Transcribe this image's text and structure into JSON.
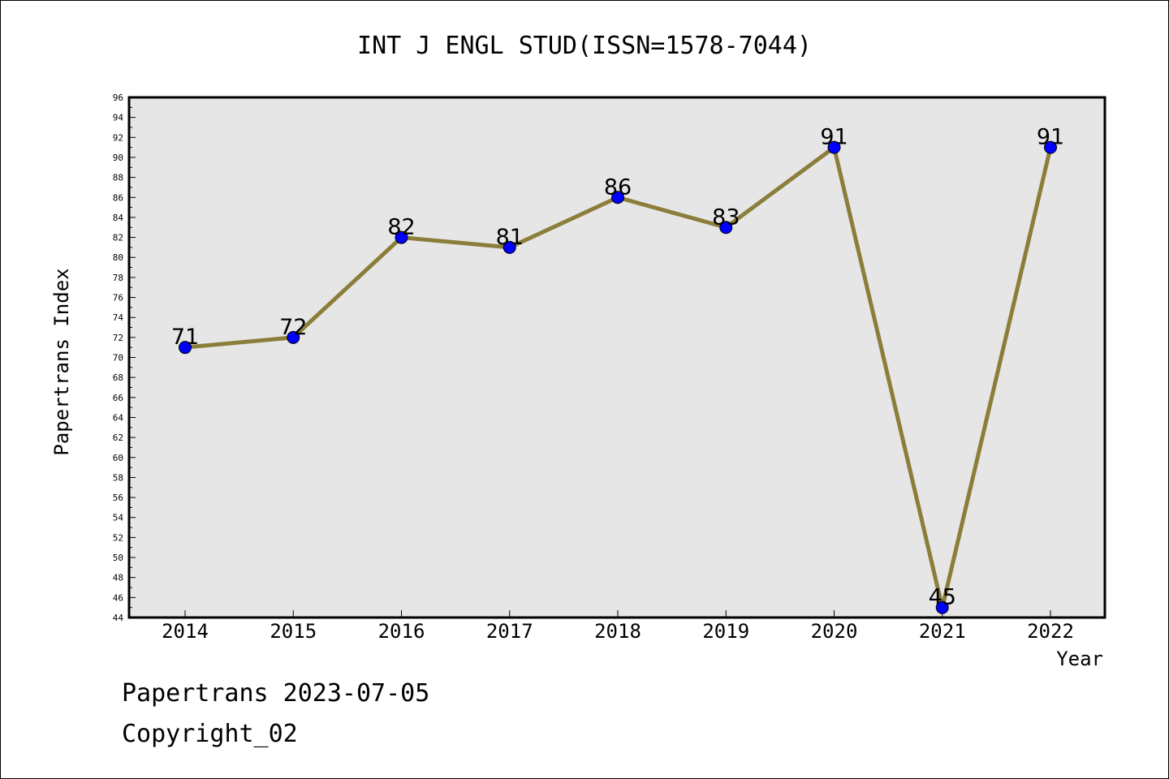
{
  "chart_data": {
    "type": "line",
    "title": "INT J ENGL STUD(ISSN=1578-7044)",
    "xlabel": "Year",
    "ylabel": "Papertrans Index",
    "categories": [
      "2014",
      "2015",
      "2016",
      "2017",
      "2018",
      "2019",
      "2020",
      "2021",
      "2022"
    ],
    "series": [
      {
        "values": [
          71,
          72,
          82,
          81,
          86,
          83,
          91,
          45,
          91
        ]
      }
    ],
    "data_labels": [
      "71",
      "72",
      "82",
      "81",
      "86",
      "83",
      "91",
      "45",
      "91"
    ],
    "ylim": [
      44,
      96
    ],
    "yticks": [
      "44",
      "46",
      "48",
      "50",
      "52",
      "54",
      "56",
      "58",
      "60",
      "62",
      "64",
      "66",
      "68",
      "70",
      "72",
      "74",
      "76",
      "78",
      "80",
      "82",
      "84",
      "86",
      "88",
      "90",
      "92",
      "94",
      "96"
    ],
    "grid": false,
    "legend": "none",
    "colors": {
      "line": "#8b7d3a",
      "marker": "#0000ff",
      "plot_background": "#e6e6e6"
    }
  },
  "footer": {
    "source": "Papertrans 2023-07-05",
    "copyright": "Copyright_02"
  }
}
